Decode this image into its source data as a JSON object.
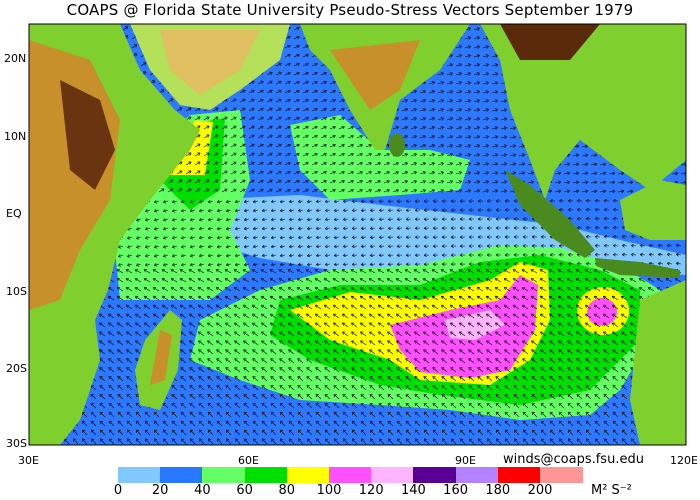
{
  "title": "COAPS @ Florida State University Pseudo-Stress Vectors  September 1979",
  "map": {
    "lat_labels": [
      "20N",
      "10N",
      "EQ",
      "10S",
      "20S",
      "30S"
    ],
    "lon_labels": [
      "30E",
      "60E",
      "90E",
      "120E"
    ],
    "credit": "winds@coaps.fsu.edu",
    "land_colors": [
      "#4b8a1e",
      "#7fcf2e",
      "#b5e05a",
      "#e0c060",
      "#c8902a",
      "#8a4a14",
      "#5a2a0a"
    ],
    "ocean_base": "#2c78ff"
  },
  "colorbar": {
    "colors": [
      "#80c8ff",
      "#2878ff",
      "#64ff64",
      "#00e000",
      "#ffff00",
      "#ff50ff",
      "#ffb4ff",
      "#5a0096",
      "#b482ff",
      "#ff0000",
      "#ff9696"
    ],
    "labels": [
      "0",
      "20",
      "40",
      "60",
      "80",
      "100",
      "120",
      "140",
      "160",
      "180",
      "200"
    ],
    "units": "M² S⁻²"
  }
}
